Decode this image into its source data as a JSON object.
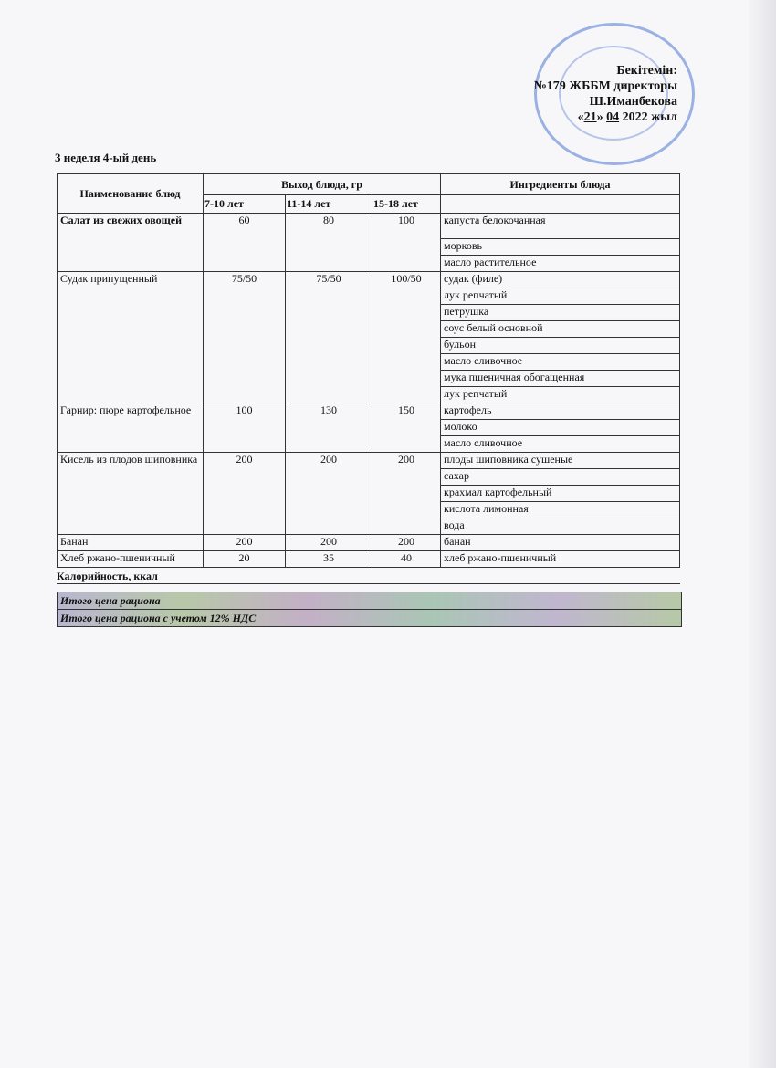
{
  "approval": {
    "line1": "Бекітемін:",
    "line2": "№179 ЖББМ директоры",
    "line3": "Ш.Иманбекова",
    "line4_day": "21",
    "line4_month": "04",
    "line4_year": "2022 жыл"
  },
  "title": "3 неделя 4-ый день",
  "header": {
    "name": "Наименование блюд",
    "yield": "Выход блюда, гр",
    "ingredients": "Ингредиенты блюда",
    "ages": [
      "7-10 лет",
      "11-14 лет",
      "15-18 лет"
    ]
  },
  "dishes": [
    {
      "name": "Салат из свежих овощей",
      "bold": true,
      "values": [
        "60",
        "80",
        "100"
      ],
      "ingredients": [
        "капуста белокочанная",
        "морковь",
        "масло растительное"
      ]
    },
    {
      "name": "Судак припущенный",
      "values": [
        "75/50",
        "75/50",
        "100/50"
      ],
      "ingredients": [
        "судак (филе)",
        "лук репчатый",
        "петрушка",
        "соус белый основной",
        "бульон",
        "масло сливочное",
        "мука пшеничная обогащенная",
        "лук репчатый"
      ]
    },
    {
      "name": "Гарнир: пюре картофельное",
      "values": [
        "100",
        "130",
        "150"
      ],
      "ingredients": [
        "картофель",
        "молоко",
        "масло сливочное"
      ]
    },
    {
      "name": "Кисель из плодов шиповника",
      "values": [
        "200",
        "200",
        "200"
      ],
      "ingredients": [
        "плоды шиповника сушеные",
        "сахар",
        "крахмал картофельный",
        "кислота лимонная",
        "вода"
      ]
    },
    {
      "name": "Банан",
      "values": [
        "200",
        "200",
        "200"
      ],
      "ingredients": [
        "банан"
      ]
    },
    {
      "name": "Хлеб ржано-пшеничный",
      "values": [
        "20",
        "35",
        "40"
      ],
      "ingredients": [
        "хлеб ржано-пшеничный"
      ]
    }
  ],
  "calories": "Калорийность, ккал",
  "totals": [
    "Итого цена рациона",
    "Итого цена рациона с учетом 12% НДС"
  ]
}
